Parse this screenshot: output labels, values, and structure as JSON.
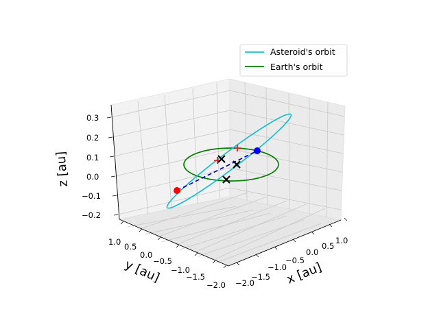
{
  "chart_data": {
    "type": "line3d",
    "title": "",
    "xlabel": "x [au]",
    "ylabel": "y [au]",
    "zlabel": "z [au]",
    "x_ticks": [
      "−2.0",
      "−1.5",
      "−1.0",
      "−0.5",
      "0.0",
      "0.5",
      "1.0"
    ],
    "y_ticks": [
      "1.0",
      "0.5",
      "0.0",
      "−0.5",
      "−1.0",
      "−1.5",
      "−2.0"
    ],
    "z_ticks": [
      "0.3",
      "0.2",
      "0.1",
      "0.0",
      "−0.1",
      "−0.2"
    ],
    "xlim": [
      -2.2,
      1.2
    ],
    "ylim": [
      -2.0,
      1.2
    ],
    "zlim": [
      -0.22,
      0.35
    ],
    "grid": true,
    "legend_position": "upper-right",
    "series": [
      {
        "name": "Asteroid's orbit",
        "color": "#17becf",
        "kind": "ellipse",
        "semi_major_au": 1.0,
        "eccentricity": 0.8
      },
      {
        "name": "Earth's orbit",
        "color": "#008000",
        "kind": "circle",
        "radius_au": 1.0
      }
    ],
    "markers": [
      {
        "kind": "dot",
        "color": "#ff0000"
      },
      {
        "kind": "dot",
        "color": "#0000ff"
      },
      {
        "kind": "plus",
        "color": "#d62728"
      },
      {
        "kind": "plus",
        "color": "#d62728"
      },
      {
        "kind": "cross",
        "color": "#000000"
      },
      {
        "kind": "cross",
        "color": "#000000"
      },
      {
        "kind": "cross",
        "color": "#000000"
      }
    ],
    "dashed_line": {
      "color": "#0000cd"
    }
  }
}
